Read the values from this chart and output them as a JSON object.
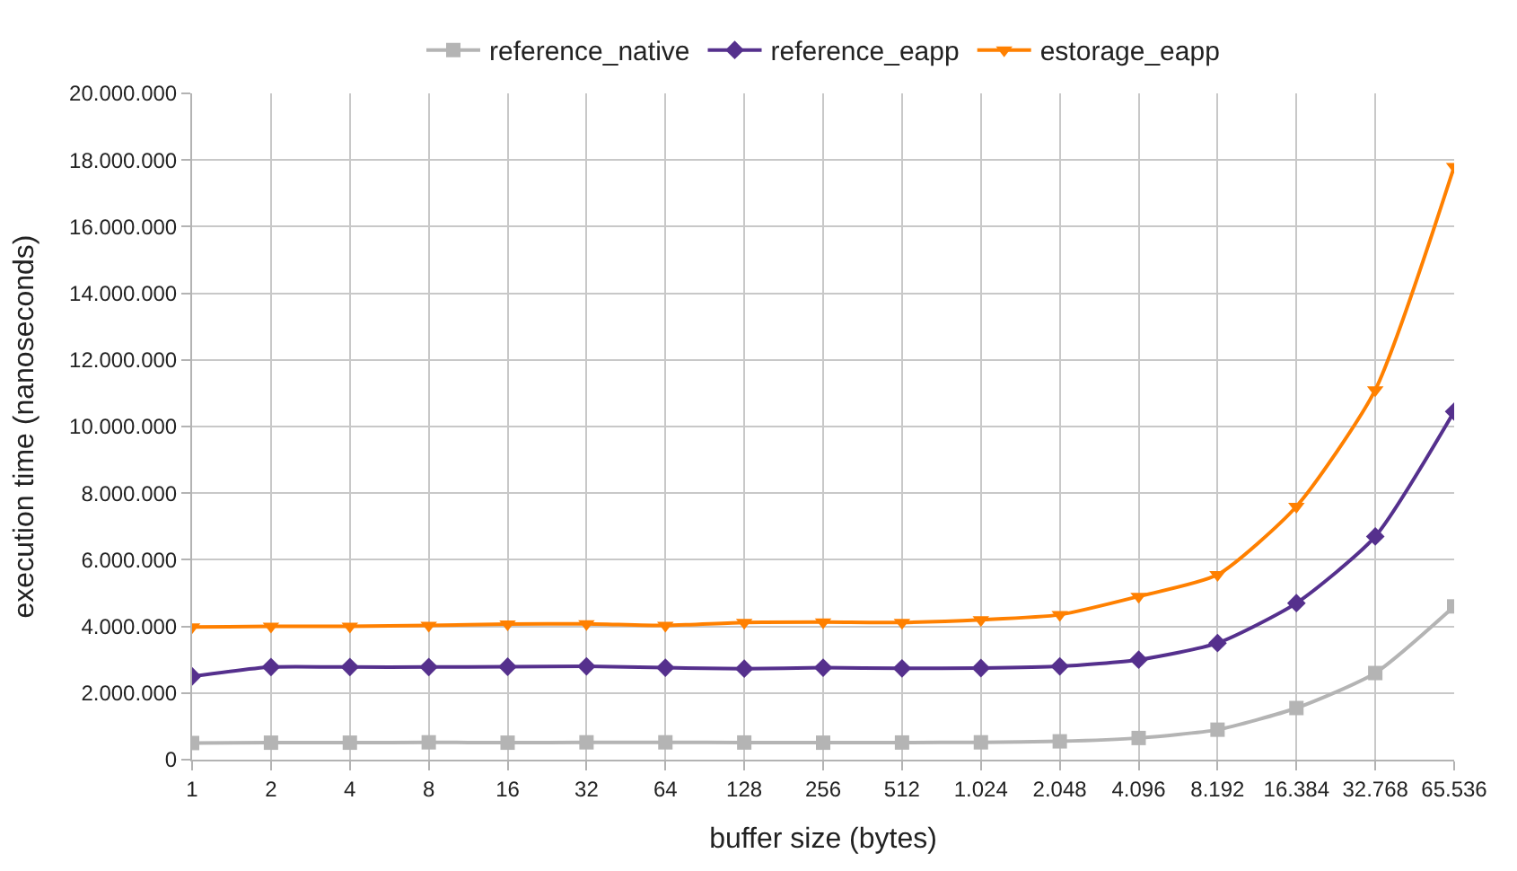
{
  "chart_data": {
    "type": "line",
    "xlabel": "buffer size (bytes)",
    "ylabel": "execution time (nanoseconds)",
    "categories": [
      "1",
      "2",
      "4",
      "8",
      "16",
      "32",
      "64",
      "128",
      "256",
      "512",
      "1.024",
      "2.048",
      "4.096",
      "8.192",
      "16.384",
      "32.768",
      "65.536"
    ],
    "series": [
      {
        "name": "reference_native",
        "color": "#b4b4b4",
        "marker": "square",
        "values": [
          500000,
          510000,
          510000,
          520000,
          510000,
          520000,
          520000,
          515000,
          510000,
          515000,
          520000,
          550000,
          650000,
          900000,
          1550000,
          2600000,
          4600000
        ]
      },
      {
        "name": "reference_eapp",
        "color": "#55308d",
        "marker": "diamond",
        "values": [
          2500000,
          2780000,
          2780000,
          2780000,
          2790000,
          2800000,
          2760000,
          2730000,
          2760000,
          2740000,
          2750000,
          2800000,
          3000000,
          3500000,
          4700000,
          6700000,
          10450000
        ]
      },
      {
        "name": "estorage_eapp",
        "color": "#ff8000",
        "marker": "triangle",
        "values": [
          3980000,
          4000000,
          4000000,
          4030000,
          4070000,
          4080000,
          4030000,
          4120000,
          4130000,
          4120000,
          4200000,
          4350000,
          4900000,
          5550000,
          7600000,
          11100000,
          17800000
        ]
      }
    ],
    "ylim": [
      0,
      20000000
    ],
    "yticks": [
      {
        "value": 0,
        "label": "0"
      },
      {
        "value": 2000000,
        "label": "2.000.000"
      },
      {
        "value": 4000000,
        "label": "4.000.000"
      },
      {
        "value": 6000000,
        "label": "6.000.000"
      },
      {
        "value": 8000000,
        "label": "8.000.000"
      },
      {
        "value": 10000000,
        "label": "10.000.000"
      },
      {
        "value": 12000000,
        "label": "12.000.000"
      },
      {
        "value": 14000000,
        "label": "14.000.000"
      },
      {
        "value": 16000000,
        "label": "16.000.000"
      },
      {
        "value": 18000000,
        "label": "18.000.000"
      },
      {
        "value": 20000000,
        "label": "20.000.000"
      }
    ],
    "grid": true,
    "legend": "top",
    "line_style": "solid"
  }
}
